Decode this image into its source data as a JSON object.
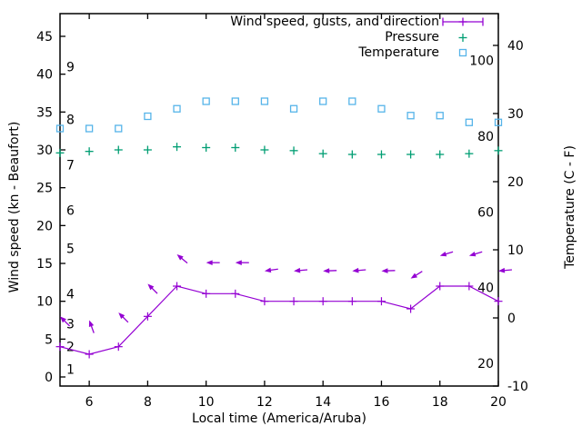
{
  "page": {
    "background": "#ffffff",
    "text_color": "#000000"
  },
  "chart_data": {
    "type": "line",
    "xlabel": "Local time (America/Aruba)",
    "ylabel_left": "Wind speed (kn - Beaufort)",
    "ylabel_right": "Temperature (C - F)",
    "x_range": [
      5,
      20
    ],
    "x_ticks": [
      6,
      8,
      10,
      12,
      14,
      16,
      18,
      20
    ],
    "y_left_ticks": [
      0,
      5,
      10,
      15,
      20,
      25,
      30,
      35,
      40,
      45
    ],
    "y_left_range_kn": [
      -1.2,
      48
    ],
    "y_right_ticks_c": [
      -10,
      0,
      10,
      20,
      30,
      40
    ],
    "y_right_range_c": [
      -10,
      44.7
    ],
    "beaufort_scale": [
      {
        "b": "1",
        "kn": 1
      },
      {
        "b": "2",
        "kn": 4
      },
      {
        "b": "3",
        "kn": 7
      },
      {
        "b": "4",
        "kn": 11
      },
      {
        "b": "5",
        "kn": 17
      },
      {
        "b": "6",
        "kn": 22
      },
      {
        "b": "7",
        "kn": 28
      },
      {
        "b": "8",
        "kn": 34
      },
      {
        "b": "9",
        "kn": 41
      }
    ],
    "fahrenheit_scale": [
      20,
      40,
      60,
      80,
      100
    ],
    "grid": false,
    "legend_position": "top-right-inside",
    "legend": [
      {
        "label": "Wind speed, gusts, and direction",
        "marker": "errorbar-line",
        "color": "#9400d3"
      },
      {
        "label": "Pressure",
        "marker": "plus",
        "color": "#009e73"
      },
      {
        "label": "Temperature",
        "marker": "open-square",
        "color": "#56b4e9"
      }
    ],
    "hours": [
      5,
      6,
      7,
      8,
      9,
      10,
      11,
      12,
      13,
      14,
      15,
      16,
      17,
      18,
      19,
      20
    ],
    "series": [
      {
        "name": "wind_speed",
        "legend_label": "Wind speed, gusts, and direction",
        "axis": "left",
        "unit": "kn",
        "style": "line-plus-markers",
        "color": "#9400d3",
        "values": [
          4,
          3,
          4,
          8,
          12,
          11,
          11,
          10,
          10,
          10,
          10,
          10,
          9,
          12,
          12,
          10
        ]
      },
      {
        "name": "wind_gusts_direction_arrows",
        "axis": "left",
        "unit": "kn",
        "style": "vector-arrows",
        "color": "#9400d3",
        "values": [
          8,
          7.5,
          8.5,
          12.3,
          16.2,
          15.1,
          15.1,
          14,
          14,
          14,
          14,
          14,
          13,
          16,
          16,
          14
        ],
        "arrow_angles_deg_screen": [
          135,
          110,
          135,
          135,
          140,
          180,
          180,
          188,
          185,
          182,
          185,
          182,
          212,
          197,
          197,
          185
        ]
      },
      {
        "name": "pressure",
        "legend_label": "Pressure",
        "axis": "left",
        "unit": "inHg (plotted on left axis)",
        "style": "scatter-plus",
        "color": "#009e73",
        "values": [
          29.6,
          29.8,
          30.0,
          30.0,
          30.4,
          30.3,
          30.3,
          30.0,
          29.9,
          29.5,
          29.4,
          29.4,
          29.4,
          29.4,
          29.5,
          29.9
        ]
      },
      {
        "name": "temperature",
        "legend_label": "Temperature",
        "axis": "right",
        "unit": "C",
        "style": "scatter-open-square",
        "color": "#56b4e9",
        "values": [
          27.8,
          27.8,
          27.8,
          29.6,
          30.7,
          31.8,
          31.8,
          31.8,
          30.7,
          31.8,
          31.8,
          30.7,
          29.7,
          29.7,
          28.7,
          28.7
        ]
      }
    ]
  }
}
